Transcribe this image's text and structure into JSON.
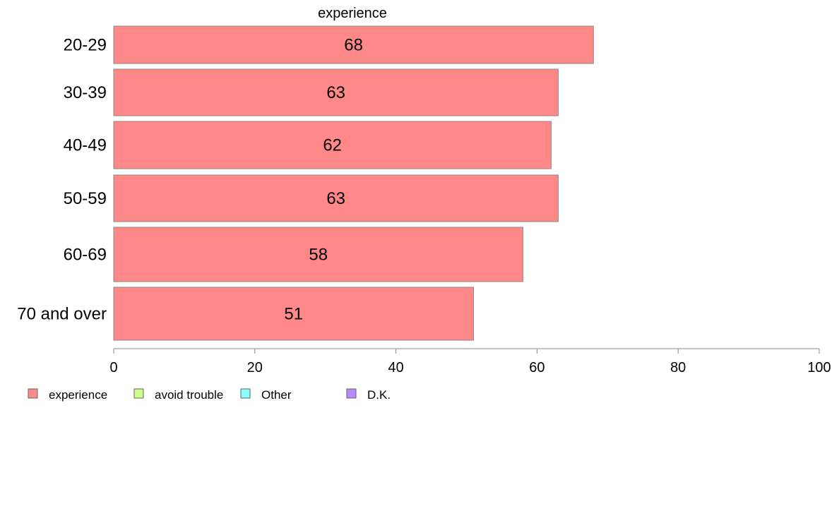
{
  "chart_data": {
    "type": "bar",
    "orientation": "horizontal",
    "title": "experience",
    "categories": [
      "20-29",
      "30-39",
      "40-49",
      "50-59",
      "60-69",
      "70 and over"
    ],
    "series": [
      {
        "name": "experience",
        "values": [
          68,
          63,
          62,
          63,
          58,
          51
        ],
        "color": "#ff8888"
      }
    ],
    "data_labels": [
      "68",
      "63",
      "62",
      "63",
      "58",
      "51"
    ],
    "xlim": [
      0,
      100
    ],
    "x_ticks": [
      0,
      20,
      40,
      60,
      80,
      100
    ],
    "x_tick_labels": [
      "0",
      "20",
      "40",
      "60",
      "80",
      "100"
    ],
    "grid": false,
    "legend_position": "bottom-left",
    "legend": [
      {
        "label": "experience",
        "color": "#ff8888"
      },
      {
        "label": "avoid trouble",
        "color": "#ccff88"
      },
      {
        "label": "Other",
        "color": "#88ffff"
      },
      {
        "label": "D.K.",
        "color": "#bb88ff"
      }
    ]
  }
}
